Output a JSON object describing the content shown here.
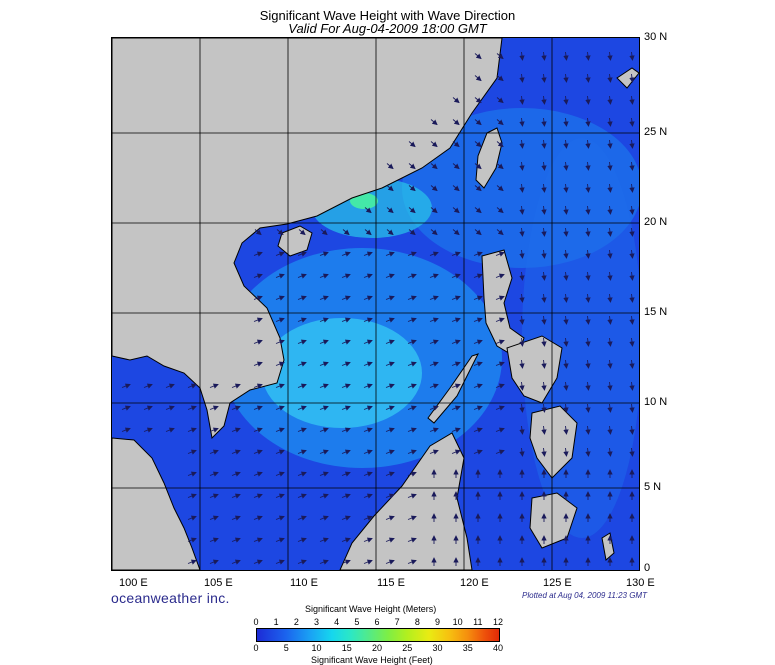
{
  "header": {
    "title": "Significant Wave Height with Wave Direction",
    "subtitle": "Valid For Aug-04-2009 18:00 GMT"
  },
  "axes": {
    "lon_labels": [
      "100 E",
      "105 E",
      "110 E",
      "115 E",
      "120 E",
      "125 E",
      "130 E"
    ],
    "lat_labels": [
      "30 N",
      "25 N",
      "20 N",
      "15 N",
      "10 N",
      "5 N",
      "0"
    ]
  },
  "footer": {
    "brand": "oceanweather inc.",
    "plotted": "Plotted at Aug 04, 2009 11:23 GMT"
  },
  "legend": {
    "title_top": "Significant Wave Height (Meters)",
    "title_bottom": "Significant Wave Height (Feet)",
    "meter_ticks": [
      "0",
      "1",
      "2",
      "3",
      "4",
      "5",
      "6",
      "7",
      "8",
      "9",
      "10",
      "11",
      "12"
    ],
    "feet_ticks": [
      "0",
      "5",
      "10",
      "15",
      "20",
      "25",
      "30",
      "35",
      "40"
    ]
  },
  "colors": {
    "land": "#c4c4c4",
    "sea_deep": "#1f3ae0",
    "sea_mid": "#1c63ee",
    "sea_light": "#2aa0f2",
    "highlight": "#3fe8b0",
    "arrow": "#1a1a5a"
  }
}
